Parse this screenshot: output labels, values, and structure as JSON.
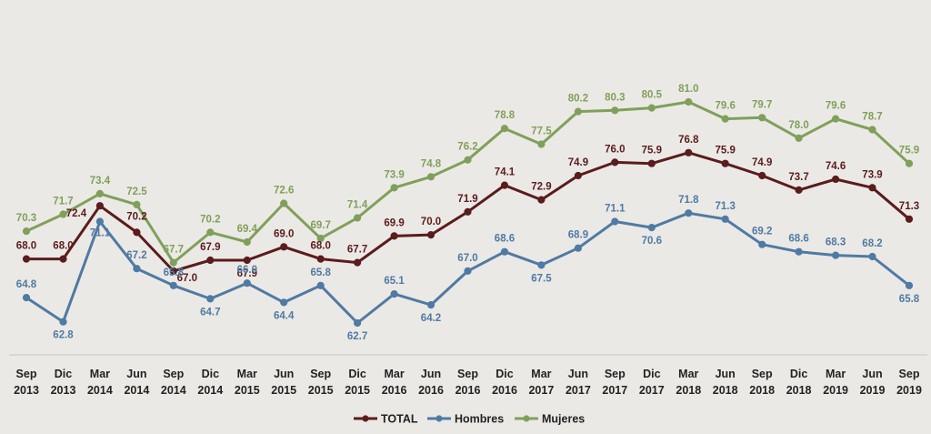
{
  "chart_data": {
    "type": "line",
    "title": "",
    "xlabel": "",
    "ylabel": "",
    "ylim": [
      60,
      83
    ],
    "grid": false,
    "legend_position": "bottom-center",
    "categories": [
      [
        "Sep",
        "2013"
      ],
      [
        "Dic",
        "2013"
      ],
      [
        "Mar",
        "2014"
      ],
      [
        "Jun",
        "2014"
      ],
      [
        "Sep",
        "2014"
      ],
      [
        "Dic",
        "2014"
      ],
      [
        "Mar",
        "2015"
      ],
      [
        "Jun",
        "2015"
      ],
      [
        "Sep",
        "2015"
      ],
      [
        "Dic",
        "2015"
      ],
      [
        "Mar",
        "2016"
      ],
      [
        "Jun",
        "2016"
      ],
      [
        "Sep",
        "2016"
      ],
      [
        "Dic",
        "2016"
      ],
      [
        "Mar",
        "2017"
      ],
      [
        "Jun",
        "2017"
      ],
      [
        "Sep",
        "2017"
      ],
      [
        "Dic",
        "2017"
      ],
      [
        "Mar",
        "2018"
      ],
      [
        "Jun",
        "2018"
      ],
      [
        "Sep",
        "2018"
      ],
      [
        "Dic",
        "2018"
      ],
      [
        "Mar",
        "2019"
      ],
      [
        "Jun",
        "2019"
      ],
      [
        "Sep",
        "2019"
      ]
    ],
    "series": [
      {
        "name": "TOTAL",
        "color": "#5a1c1c",
        "values": [
          68.0,
          68.0,
          72.4,
          70.2,
          67.0,
          67.9,
          67.9,
          69.0,
          68.0,
          67.7,
          69.9,
          70.0,
          71.9,
          74.1,
          72.9,
          74.9,
          76.0,
          75.9,
          76.8,
          75.9,
          74.9,
          73.7,
          74.6,
          73.9,
          71.3
        ],
        "labels": [
          "68.0",
          "68.0",
          "72.4",
          "70.2",
          "67.0",
          "67.9",
          "67.9",
          "69.0",
          "68.0",
          "67.7",
          "69.9",
          "70.0",
          "71.9",
          "74.1",
          "72.9",
          "74.9",
          "76.0",
          "75.9",
          "76.8",
          "75.9",
          "74.9",
          "73.7",
          "74.6",
          "73.9",
          "71.3"
        ]
      },
      {
        "name": "Hombres",
        "color": "#4f7aa3",
        "values": [
          64.8,
          62.8,
          71.1,
          67.2,
          65.8,
          64.7,
          66.0,
          64.4,
          65.8,
          62.7,
          65.1,
          64.2,
          67.0,
          68.6,
          67.5,
          68.9,
          71.1,
          70.6,
          71.8,
          71.3,
          69.2,
          68.6,
          68.3,
          68.2,
          65.8
        ],
        "labels": [
          "64.8",
          "62.8",
          "71.1",
          "67.2",
          "65.8",
          "64.7",
          "66.0",
          "64.4",
          "65.8",
          "62.7",
          "65.1",
          "64.2",
          "67.0",
          "68.6",
          "67.5",
          "68.9",
          "71.1",
          "70.6",
          "71.8",
          "71.3",
          "69.2",
          "68.6",
          "68.3",
          "68.2",
          "65.8"
        ]
      },
      {
        "name": "Mujeres",
        "color": "#7fa05a",
        "values": [
          70.3,
          71.7,
          73.4,
          72.5,
          67.7,
          70.2,
          69.4,
          72.6,
          69.7,
          71.4,
          73.9,
          74.8,
          76.2,
          78.8,
          77.5,
          80.2,
          80.3,
          80.5,
          81.0,
          79.6,
          79.7,
          78.0,
          79.6,
          78.7,
          75.9
        ],
        "labels": [
          "70.3",
          "71.7",
          "73.4",
          "72.5",
          "67.7",
          "70.2",
          "69.4",
          "72.6",
          "69.7",
          "71.4",
          "73.9",
          "74.8",
          "76.2",
          "78.8",
          "77.5",
          "80.2",
          "80.3",
          "80.5",
          "81.0",
          "79.6",
          "79.7",
          "78.0",
          "79.6",
          "78.7",
          "75.9"
        ]
      }
    ]
  }
}
